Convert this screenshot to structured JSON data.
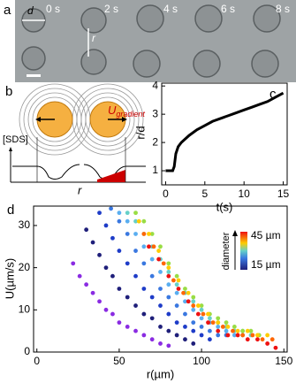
{
  "figure": {
    "a": {
      "label": "a",
      "times": [
        "0 s",
        "2 s",
        "4 s",
        "6 s",
        "8 s"
      ],
      "d": "d",
      "r": "r"
    },
    "b": {
      "label": "b",
      "u": "U",
      "u_sub": "gradient",
      "y_label": "[SDS]",
      "x_label": "r"
    }
  },
  "chart_data": [
    {
      "type": "line",
      "panel": "c",
      "x_label": "t(s)",
      "y_label": "r/d",
      "color": "#000000",
      "x": [
        0,
        0.5,
        0.9,
        1.1,
        1.3,
        1.6,
        2,
        3,
        4,
        5,
        6,
        7,
        8,
        9,
        10,
        11,
        12,
        13,
        14,
        15
      ],
      "values": [
        1,
        1,
        1,
        1.15,
        1.6,
        1.85,
        2.0,
        2.25,
        2.45,
        2.6,
        2.75,
        2.85,
        2.95,
        3.05,
        3.15,
        3.25,
        3.35,
        3.45,
        3.6,
        3.75
      ],
      "xlim": [
        -0.5,
        15.5
      ],
      "xticks": [
        0,
        5,
        10,
        15
      ],
      "ylim": [
        0.5,
        4.1
      ],
      "yticks": [
        1,
        2,
        3,
        4
      ]
    },
    {
      "type": "scatter",
      "panel": "d",
      "x_label": "r(µm)",
      "y_label": "U(µm/s)",
      "xlim": [
        -2,
        152
      ],
      "xticks": [
        0,
        50,
        100,
        150
      ],
      "ylim": [
        0,
        34.6
      ],
      "yticks": [
        0,
        10,
        20,
        30
      ],
      "colorbar": {
        "title": "diameter",
        "max_label": "45 µm",
        "min_label": "15 µm"
      },
      "series": [
        {
          "color": "#8a2be2",
          "x": [
            22,
            26,
            30,
            34,
            38,
            42,
            46,
            50,
            55,
            60,
            65,
            70,
            75,
            80
          ],
          "values": [
            21,
            18,
            16,
            14,
            12,
            10,
            9,
            7,
            6,
            5,
            4,
            3,
            2,
            1.5
          ]
        },
        {
          "color": "#1f1f7a",
          "x": [
            30,
            34,
            38,
            42,
            46,
            50,
            55,
            60,
            65,
            70,
            75,
            80,
            85,
            90,
            95
          ],
          "values": [
            29,
            26,
            23,
            20,
            18,
            15,
            13,
            11,
            9,
            8,
            6,
            5,
            4,
            3,
            2
          ]
        },
        {
          "color": "#1e3cc8",
          "x": [
            38,
            42,
            46,
            50,
            55,
            60,
            65,
            70,
            75,
            80,
            85,
            90,
            95,
            100,
            105
          ],
          "values": [
            33,
            30,
            27,
            24,
            21,
            18,
            15,
            13,
            11,
            9,
            7,
            6,
            5,
            4,
            3
          ]
        },
        {
          "color": "#3a78e0",
          "x": [
            45,
            50,
            55,
            60,
            65,
            70,
            75,
            80,
            85,
            90,
            95,
            100,
            105,
            110,
            115
          ],
          "values": [
            34,
            31,
            28,
            24,
            21,
            18,
            15,
            13,
            11,
            9,
            7,
            6,
            5,
            4,
            4
          ]
        },
        {
          "color": "#5aaef0",
          "x": [
            50,
            55,
            60,
            65,
            70,
            75,
            80,
            85,
            90,
            95,
            100,
            105,
            110,
            115,
            120,
            125
          ],
          "values": [
            33,
            31,
            28,
            25,
            22,
            19,
            16,
            14,
            12,
            10,
            8,
            7,
            6,
            5,
            4,
            4
          ]
        },
        {
          "color": "#66d0c8",
          "x": [
            55,
            60,
            65,
            70,
            75,
            80,
            85,
            90,
            95,
            100,
            105,
            110,
            115,
            120,
            125,
            130
          ],
          "values": [
            33,
            31,
            28,
            25,
            22,
            19,
            16,
            14,
            12,
            10,
            8,
            7,
            6,
            5,
            5,
            4
          ]
        },
        {
          "color": "#99dd44",
          "x": [
            60,
            65,
            70,
            75,
            80,
            85,
            90,
            95,
            100,
            105,
            110,
            115,
            120,
            125,
            130,
            135
          ],
          "values": [
            33,
            31,
            28,
            25,
            21,
            18,
            15,
            13,
            11,
            9,
            8,
            7,
            6,
            5,
            5,
            4
          ]
        },
        {
          "color": "#ffcc00",
          "x": [
            62,
            68,
            74,
            80,
            86,
            92,
            98,
            104,
            110,
            116,
            122,
            128,
            134,
            140
          ],
          "values": [
            31,
            28,
            24,
            20,
            17,
            14,
            11,
            9,
            7,
            6,
            5,
            5,
            4,
            4
          ]
        },
        {
          "color": "#ff6600",
          "x": [
            65,
            71,
            77,
            83,
            89,
            95,
            101,
            107,
            113,
            119,
            125,
            131,
            137,
            143
          ],
          "values": [
            28,
            25,
            21,
            17,
            14,
            11,
            9,
            7,
            6,
            5,
            4,
            4,
            3,
            3
          ]
        },
        {
          "color": "#ee1111",
          "x": [
            68,
            74,
            80,
            86,
            92,
            98,
            104,
            110,
            116,
            122,
            128,
            134,
            140,
            145
          ],
          "values": [
            25,
            22,
            18,
            15,
            12,
            9,
            7,
            5,
            4,
            4,
            3,
            3,
            2,
            1
          ]
        }
      ]
    }
  ]
}
